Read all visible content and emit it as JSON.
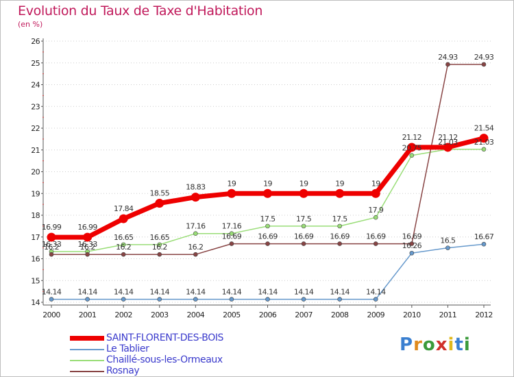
{
  "title": "Evolution du Taux de Taxe d'Habitation",
  "unit_label": "(en %)",
  "logo": {
    "text": "Proxiti",
    "letter_colors": [
      "#3a7fd0",
      "#e08a1c",
      "#3a9a3a",
      "#d0302a",
      "#e0b81c",
      "#3a7fd0",
      "#3a9a3a"
    ]
  },
  "chart_data": {
    "type": "line",
    "title": "Evolution du Taux de Taxe d'Habitation",
    "ylabel": "(en %)",
    "xlabel": "",
    "x": [
      "2000",
      "2001",
      "2002",
      "2003",
      "2004",
      "2005",
      "2006",
      "2007",
      "2008",
      "2009",
      "2010",
      "2011",
      "2012"
    ],
    "ylim": [
      14,
      26
    ],
    "yticks": [
      14,
      15,
      16,
      17,
      18,
      19,
      20,
      21,
      22,
      23,
      24,
      25,
      26
    ],
    "grid": "horizontal dotted",
    "legend_position": "bottom-left",
    "series": [
      {
        "name": "SAINT-FLORENT-DES-BOIS",
        "color": "#ee0000",
        "values": [
          16.99,
          16.99,
          17.84,
          18.55,
          18.83,
          19,
          19,
          19,
          19,
          19,
          21.12,
          21.12,
          21.54
        ],
        "labels": [
          "16.99",
          "16.99",
          "17.84",
          "18.55",
          "18.83",
          "19",
          "19",
          "19",
          "19",
          "19",
          "21.12",
          "21.12",
          "21.54"
        ]
      },
      {
        "name": "Le Tablier",
        "color": "#6699cc",
        "values": [
          14.14,
          14.14,
          14.14,
          14.14,
          14.14,
          14.14,
          14.14,
          14.14,
          14.14,
          14.14,
          16.26,
          16.5,
          16.67
        ],
        "labels": [
          "14.14",
          "14.14",
          "14.14",
          "14.14",
          "14.14",
          "14.14",
          "14.14",
          "14.14",
          "14.14",
          "14.14",
          "16.26",
          "16.5",
          "16.67"
        ]
      },
      {
        "name": "Chaillé-sous-les-Ormeaux",
        "color": "#99dd77",
        "values": [
          16.33,
          16.33,
          16.65,
          16.65,
          17.16,
          17.16,
          17.5,
          17.5,
          17.5,
          17.9,
          20.75,
          21.03,
          21.03
        ],
        "labels": [
          "16.33",
          "16.33",
          "16.65",
          "16.65",
          "17.16",
          "17.16",
          "17.5",
          "17.5",
          "17.5",
          "17.9",
          "20.75",
          "21.03",
          "21.03"
        ]
      },
      {
        "name": "Rosnay",
        "color": "#884444",
        "values": [
          16.2,
          16.2,
          16.2,
          16.2,
          16.2,
          16.69,
          16.69,
          16.69,
          16.69,
          16.69,
          16.69,
          24.93,
          24.93
        ],
        "labels": [
          "16.2",
          "16.2",
          "16.2",
          "16.2",
          "16.2",
          "16.69",
          "16.69",
          "16.69",
          "16.69",
          "16.69",
          "16.69",
          "24.93",
          "24.93"
        ]
      }
    ]
  }
}
